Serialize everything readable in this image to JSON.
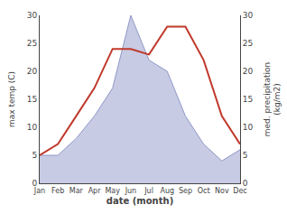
{
  "chart_data": {
    "type": "line",
    "xlabel": "date (month)",
    "ylabel": "max temp (C)",
    "y2label": "med. precipitation\n(kg/m2)",
    "categories": [
      "Jan",
      "Feb",
      "Mar",
      "Apr",
      "May",
      "Jun",
      "Jul",
      "Aug",
      "Sep",
      "Oct",
      "Nov",
      "Dec"
    ],
    "series": [
      {
        "type": "area",
        "axis": "y2",
        "color": "#9098c8",
        "values": [
          5.0,
          5.0,
          8.0,
          12.0,
          17.0,
          30.0,
          22.0,
          20.0,
          12.0,
          7.0,
          4.0,
          6.0
        ]
      },
      {
        "type": "line",
        "color": "#c0392b",
        "values": [
          5.0,
          7.0,
          12.0,
          17.0,
          24.0,
          24.0,
          23.0,
          28.0,
          28.0,
          22.0,
          12.0,
          7.0
        ]
      }
    ],
    "ylim": [
      0,
      30
    ],
    "yticks": [
      0,
      5,
      10,
      15,
      20,
      25,
      30
    ],
    "y2lim": [
      0,
      30
    ],
    "y2ticks": [
      0,
      5,
      10,
      15,
      20,
      25,
      30
    ],
    "grid": false
  }
}
